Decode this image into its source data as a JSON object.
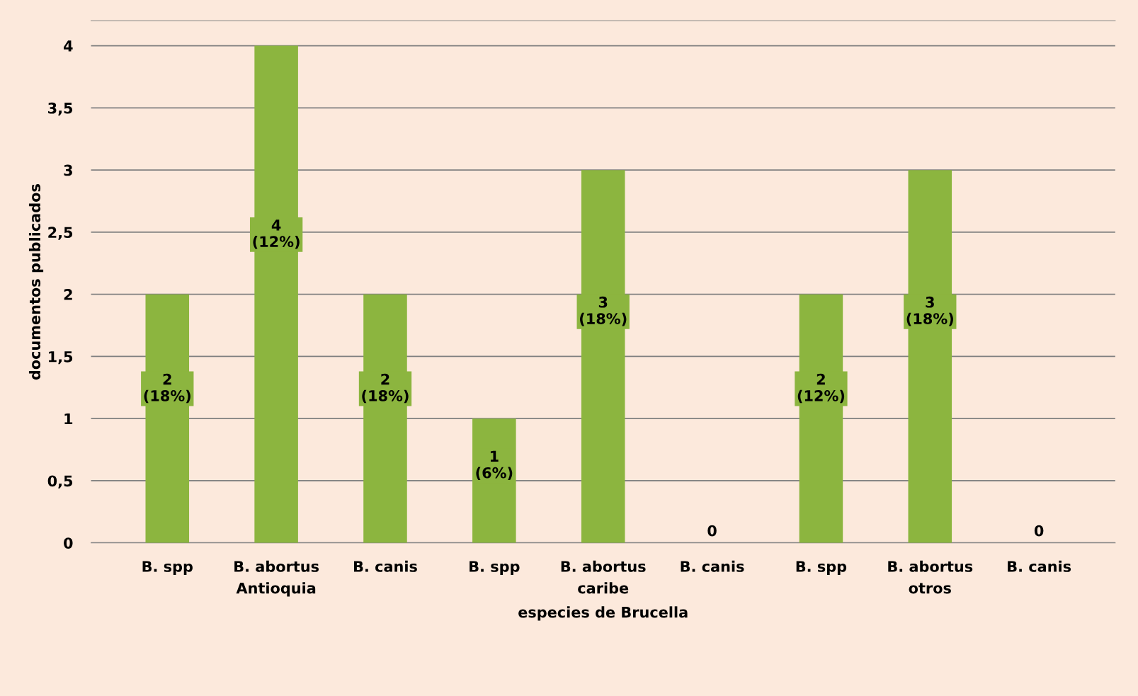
{
  "chart_data": {
    "type": "bar",
    "xlabel": "especies de Brucella",
    "ylabel": "documentos publicados",
    "categories": [
      "B. spp",
      "B. abortus",
      "B. canis",
      "B. spp",
      "B. abortus",
      "B. canis",
      "B. spp",
      "B. abortus",
      "B. canis"
    ],
    "values": [
      2,
      4,
      2,
      1,
      3,
      0,
      2,
      3,
      0
    ],
    "value_labels": [
      "2\n(18%)",
      "4\n(12%)",
      "2\n(18%)",
      "1\n(6%)",
      "3\n(18%)",
      "0",
      "2\n(12%)",
      "3\n(18%)",
      "0"
    ],
    "color": "#8cb53f",
    "ylim": [
      0,
      4.2
    ],
    "yticks": [
      0,
      {
        "value": 0.5,
        "label": "0,5"
      },
      1,
      {
        "value": 1.5,
        "label": "1,5"
      },
      2,
      {
        "value": 2.5,
        "label": "2,5"
      },
      3,
      {
        "value": 3.5,
        "label": "3,5"
      },
      4
    ],
    "grid": "y",
    "annotations": [
      "Antioquia",
      "caribe",
      "otros"
    ]
  }
}
